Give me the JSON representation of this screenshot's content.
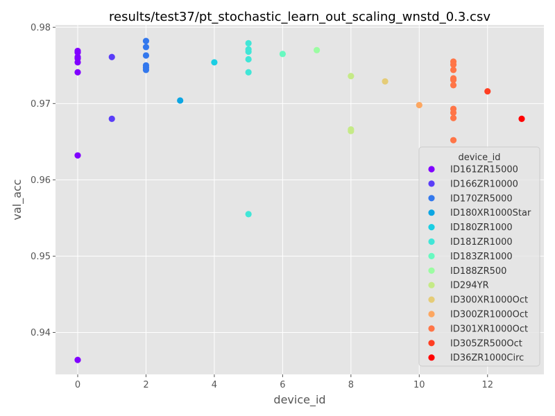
{
  "chart_data": {
    "type": "scatter",
    "title": "results/test37/pt_stochastic_learn_out_scaling_wnstd_0.3.csv",
    "xlabel": "device_id",
    "ylabel": "val_acc",
    "xlim": [
      -0.65,
      13.65
    ],
    "ylim": [
      0.9345,
      0.9803
    ],
    "xticks": [
      0,
      2,
      4,
      6,
      8,
      10,
      12
    ],
    "yticks": [
      0.94,
      0.95,
      0.96,
      0.97,
      0.98
    ],
    "ytick_labels": [
      "0.94",
      "0.95",
      "0.96",
      "0.97",
      "0.98"
    ],
    "grid": true,
    "legend": {
      "title": "device_id",
      "placement": "right"
    },
    "series": [
      {
        "name": "ID161ZR15000",
        "color": "#8000ff",
        "x": [
          0,
          0,
          0,
          0,
          0,
          0,
          0,
          0
        ],
        "y": [
          0.9769,
          0.9767,
          0.9761,
          0.9759,
          0.9754,
          0.9741,
          0.9632,
          0.9364
        ]
      },
      {
        "name": "ID166ZR10000",
        "color": "#5a3df8",
        "x": [
          1,
          1
        ],
        "y": [
          0.9761,
          0.968
        ]
      },
      {
        "name": "ID170ZR5000",
        "color": "#3378ed",
        "x": [
          2,
          2,
          2,
          2,
          2,
          2
        ],
        "y": [
          0.9782,
          0.9774,
          0.9763,
          0.975,
          0.9747,
          0.9744
        ]
      },
      {
        "name": "ID180XR1000Star",
        "color": "#0ca6e3",
        "x": [
          3
        ],
        "y": [
          0.9704
        ]
      },
      {
        "name": "ID180ZR1000",
        "color": "#1acee3",
        "x": [
          4
        ],
        "y": [
          0.9754
        ]
      },
      {
        "name": "ID181ZR1000",
        "color": "#41e6d7",
        "x": [
          5,
          5,
          5,
          5,
          5,
          5
        ],
        "y": [
          0.9779,
          0.9771,
          0.9768,
          0.9758,
          0.9741,
          0.9555
        ]
      },
      {
        "name": "ID183ZR1000",
        "color": "#68f9c0",
        "x": [
          6
        ],
        "y": [
          0.9765
        ]
      },
      {
        "name": "ID188ZR500",
        "color": "#9bfca2",
        "x": [
          7
        ],
        "y": [
          0.977
        ]
      },
      {
        "name": "ID294YR",
        "color": "#c5ea87",
        "x": [
          8,
          8,
          8
        ],
        "y": [
          0.9736,
          0.9666,
          0.9664
        ]
      },
      {
        "name": "ID300XR1000Oct",
        "color": "#e5cc77",
        "x": [
          9
        ],
        "y": [
          0.9729
        ]
      },
      {
        "name": "ID300ZR1000Oct",
        "color": "#fda761",
        "x": [
          10
        ],
        "y": [
          0.9698
        ]
      },
      {
        "name": "ID301XR1000Oct",
        "color": "#ff7547",
        "x": [
          11,
          11,
          11,
          11,
          11,
          11,
          11,
          11,
          11,
          11
        ],
        "y": [
          0.9755,
          0.9751,
          0.9744,
          0.9733,
          0.9731,
          0.9724,
          0.9693,
          0.9688,
          0.9681,
          0.9652
        ]
      },
      {
        "name": "ID305ZR500Oct",
        "color": "#ff3e22",
        "x": [
          12
        ],
        "y": [
          0.9716
        ]
      },
      {
        "name": "ID36ZR1000Circ",
        "color": "#ff0000",
        "x": [
          13
        ],
        "y": [
          0.968
        ]
      }
    ]
  }
}
